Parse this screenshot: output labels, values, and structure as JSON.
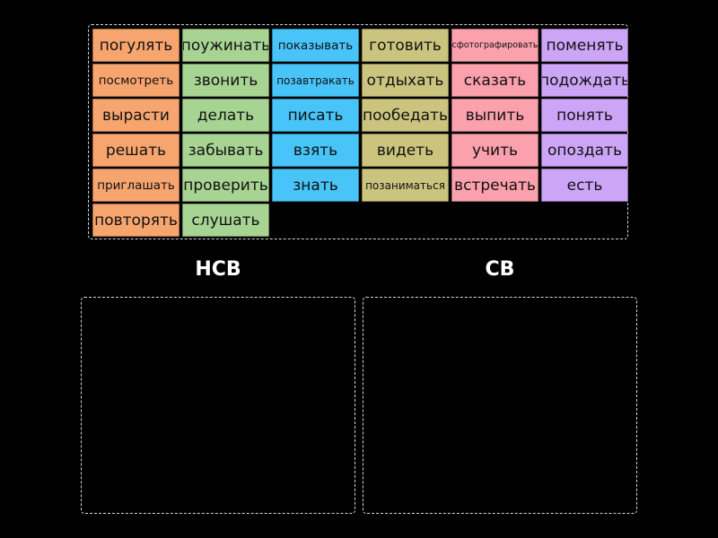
{
  "pool": {
    "tiles": [
      {
        "label": "погулять",
        "color": "orange"
      },
      {
        "label": "поужинать",
        "color": "green"
      },
      {
        "label": "показывать",
        "color": "blue"
      },
      {
        "label": "готовить",
        "color": "olive"
      },
      {
        "label": "сфотографировать",
        "color": "pink"
      },
      {
        "label": "поменять",
        "color": "purple"
      },
      {
        "label": "посмотреть",
        "color": "orange"
      },
      {
        "label": "звонить",
        "color": "green"
      },
      {
        "label": "позавтракать",
        "color": "blue"
      },
      {
        "label": "отдыхать",
        "color": "olive"
      },
      {
        "label": "сказать",
        "color": "pink"
      },
      {
        "label": "подождать",
        "color": "purple"
      },
      {
        "label": "вырасти",
        "color": "orange"
      },
      {
        "label": "делать",
        "color": "green"
      },
      {
        "label": "писать",
        "color": "blue"
      },
      {
        "label": "пообедать",
        "color": "olive"
      },
      {
        "label": "выпить",
        "color": "pink"
      },
      {
        "label": "понять",
        "color": "purple"
      },
      {
        "label": "решать",
        "color": "orange"
      },
      {
        "label": "забывать",
        "color": "green"
      },
      {
        "label": "взять",
        "color": "blue"
      },
      {
        "label": "видеть",
        "color": "olive"
      },
      {
        "label": "учить",
        "color": "pink"
      },
      {
        "label": "опоздать",
        "color": "purple"
      },
      {
        "label": "приглашать",
        "color": "orange"
      },
      {
        "label": "проверить",
        "color": "green"
      },
      {
        "label": "знать",
        "color": "blue"
      },
      {
        "label": "позаниматься",
        "color": "olive"
      },
      {
        "label": "встречать",
        "color": "pink"
      },
      {
        "label": "есть",
        "color": "purple"
      },
      {
        "label": "повторять",
        "color": "orange"
      },
      {
        "label": "слушать",
        "color": "green"
      }
    ]
  },
  "groups": [
    {
      "title": "НСВ"
    },
    {
      "title": "СВ"
    }
  ],
  "colors": {
    "orange": "#f7a56f",
    "green": "#a8d493",
    "blue": "#48c4f8",
    "olive": "#cbc47e",
    "pink": "#fba0ad",
    "purple": "#cca5f7",
    "background": "#000000",
    "border": "#d8d8d8"
  }
}
